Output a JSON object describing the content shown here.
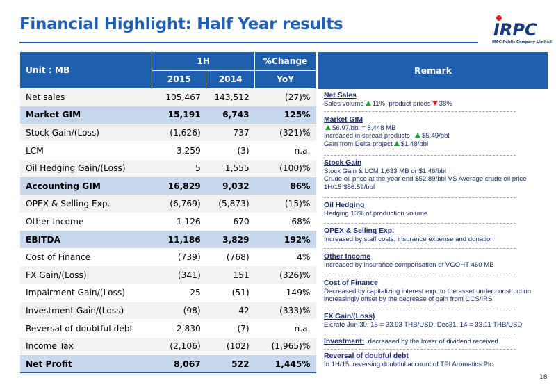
{
  "title": "Financial Highlight:  Half Year results",
  "logo": {
    "text": "IRPC",
    "subtitle": "IRPC Public Company Limited"
  },
  "table": {
    "unit_label": "Unit : MB",
    "period_header": "1H",
    "change_header": "%Change",
    "year_2015": "2015",
    "year_2014": "2014",
    "yoy": "YoY",
    "rows": [
      {
        "label": "Net sales",
        "y2015": "105,467",
        "y2014": "143,512",
        "change": "(27)%"
      },
      {
        "label": "Market GIM",
        "y2015": "15,191",
        "y2014": "6,743",
        "change": "125%"
      },
      {
        "label": "Stock Gain/(Loss)",
        "y2015": "(1,626)",
        "y2014": "737",
        "change": "(321)%"
      },
      {
        "label": "LCM",
        "y2015": "3,259",
        "y2014": "(3)",
        "change": "n.a."
      },
      {
        "label": "Oil Hedging Gain/(Loss)",
        "y2015": "5",
        "y2014": "1,555",
        "change": "(100)%"
      },
      {
        "label": "Accounting GIM",
        "y2015": "16,829",
        "y2014": "9,032",
        "change": "86%"
      },
      {
        "label": "OPEX & Selling Exp.",
        "y2015": "(6,769)",
        "y2014": "(5,873)",
        "change": "(15)%"
      },
      {
        "label": "Other Income",
        "y2015": "1,126",
        "y2014": "670",
        "change": "68%"
      },
      {
        "label": "EBITDA",
        "y2015": "11,186",
        "y2014": "3,829",
        "change": "192%"
      },
      {
        "label": "Cost of Finance",
        "y2015": "(739)",
        "y2014": "(768)",
        "change": "4%"
      },
      {
        "label": "FX Gain/(Loss)",
        "y2015": "(341)",
        "y2014": "151",
        "change": "(326)%"
      },
      {
        "label": "Impairment Gain/(Loss)",
        "y2015": "25",
        "y2014": "(51)",
        "change": "149%"
      },
      {
        "label": "Investment Gain/(Loss)",
        "y2015": "(98)",
        "y2014": "42",
        "change": "(333)%"
      },
      {
        "label": "Reversal of doubtful debt",
        "y2015": "2,830",
        "y2014": "(7)",
        "change": "n.a."
      },
      {
        "label": "Income Tax",
        "y2015": "(2,106)",
        "y2014": "(102)",
        "change": "(1,965)%"
      },
      {
        "label": "Net Profit",
        "y2015": "8,067",
        "y2014": "522",
        "change": "1,445%"
      }
    ]
  },
  "remark": {
    "header": "Remark",
    "net_sales": {
      "title": "Net Sales",
      "line1_a": "Sales volume",
      "line1_b": "11%,  product prices",
      "line1_c": "38%"
    },
    "market_gim": {
      "title": "Market GIM",
      "line1": "$6.97/bbl = 8,448 MB",
      "line2_a": "Increased in spread products",
      "line2_b": "$5.49/bbl",
      "line3_a": "Gain from Delta project",
      "line3_b": "$1.48/bbl"
    },
    "stock_gain": {
      "title": "Stock Gain",
      "line1": "Stock Gain & LCM 1,633 MB or $1.46/bbl",
      "line2": "Crude oil price at the year end $52.89/bbl VS Average crude oil price",
      "line3": "1H/15 $56.59/bbl"
    },
    "oil_hedging": {
      "title": "Oil Hedging",
      "line1": "Hedging 13% of production volume"
    },
    "opex": {
      "title": "OPEX & Selling Exp.",
      "line1": "Increased by staff costs, insurance expense and donation"
    },
    "other_income": {
      "title": "Other Income",
      "line1": "Increased by insurance compensation of VGOHT 460 MB"
    },
    "cost_finance": {
      "title": "Cost of Finance",
      "line1": "Decreased by capitalizing interest exp. to the asset under construction",
      "line2": "increasingly offset by the decrease of  gain from CCS/IRS"
    },
    "fx": {
      "title": "FX Gain/(Loss)",
      "line1": "Ex.rate  Jun 30, 15 = 33.93 THB/USD, Dec31, 14 = 33.11 THB/USD"
    },
    "investment": {
      "title": "Investment:",
      "line1": "decreased by the lower of dividend received"
    },
    "reversal": {
      "title": "Reversal of doubful debt",
      "line1": "In 1H/15, reversing doubtful account of TPI Aromatics Plc."
    }
  },
  "page_number": "18",
  "colors": {
    "brand_blue": "#1f5fb0",
    "highlight_row": "#c7d8ee",
    "alt_row": "#f2f2f2",
    "up_arrow": "#21a038",
    "down_arrow": "#d42020",
    "logo_red": "#e3262f"
  },
  "icons": {
    "up": "up-arrow-icon",
    "down": "down-arrow-icon"
  }
}
